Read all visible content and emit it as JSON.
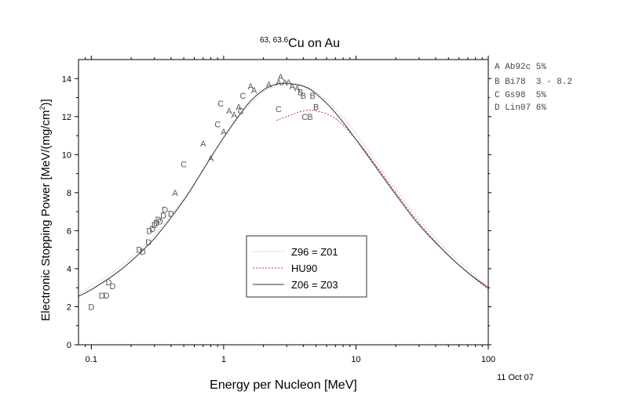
{
  "chart_data": {
    "type": "line",
    "title_main": "Cu on Au",
    "title_sup": "63, 63.6",
    "xlabel": "Energy per Nucleon [MeV]",
    "ylabel_main": "Electronic Stopping Power [MeV/(mg/cm",
    "ylabel_sup": "2",
    "ylabel_end": ")]",
    "x_scale": "log",
    "xlim": [
      0.08,
      100
    ],
    "ylim": [
      0,
      15
    ],
    "x_ticks": [
      0.1,
      1,
      10,
      100
    ],
    "x_tick_labels": [
      "0.1",
      "1",
      "10",
      "100"
    ],
    "y_ticks": [
      0,
      2,
      4,
      6,
      8,
      10,
      12,
      14
    ],
    "y_tick_labels": [
      "0",
      "2",
      "4",
      "6",
      "8",
      "10",
      "12",
      "14"
    ],
    "date_label": "11 Oct 07",
    "reference_list": [
      "A Ab92c 5%",
      "B Bi78  3 - 8.2",
      "C Gs98  5%",
      "D Lin07 6%"
    ],
    "legend": [
      {
        "name": "Z96 = Z01",
        "color": "#d99a9a",
        "dash": "1,2"
      },
      {
        "name": "HU90",
        "color": "#cc3333",
        "dash": "2,2"
      },
      {
        "name": "Z06 = Z03",
        "color": "#333333",
        "dash": ""
      }
    ],
    "series": [
      {
        "name": "Z96 = Z01",
        "x": [
          0.08,
          0.1,
          0.15,
          0.2,
          0.3,
          0.5,
          0.7,
          1.0,
          1.5,
          2.0,
          2.5,
          3.0,
          4.0,
          5.0,
          7.0,
          10,
          15,
          20,
          30,
          50,
          70,
          100
        ],
        "y": [
          2.65,
          3.1,
          3.9,
          4.6,
          5.8,
          7.7,
          9.2,
          10.9,
          12.5,
          13.3,
          13.6,
          13.7,
          13.6,
          13.3,
          12.4,
          11.1,
          9.4,
          8.2,
          6.6,
          4.9,
          4.0,
          3.0
        ]
      },
      {
        "name": "HU90",
        "x": [
          2.5,
          3.0,
          4.0,
          5.0,
          7.0,
          10,
          15,
          20,
          30,
          50,
          70,
          100
        ],
        "y": [
          11.8,
          12.0,
          12.3,
          12.3,
          11.9,
          10.8,
          9.2,
          8.0,
          6.4,
          4.7,
          3.8,
          2.9
        ]
      },
      {
        "name": "Z06 = Z03",
        "x": [
          0.08,
          0.1,
          0.15,
          0.2,
          0.3,
          0.5,
          0.7,
          1.0,
          1.5,
          2.0,
          2.5,
          3.0,
          4.0,
          5.0,
          7.0,
          10,
          15,
          20,
          30,
          50,
          70,
          100
        ],
        "y": [
          2.55,
          2.9,
          3.7,
          4.4,
          5.6,
          7.6,
          9.2,
          10.9,
          12.6,
          13.4,
          13.7,
          13.75,
          13.6,
          13.2,
          12.2,
          10.8,
          9.1,
          7.9,
          6.3,
          4.7,
          3.8,
          3.0
        ]
      }
    ],
    "data_points": [
      {
        "x": 0.1,
        "y": 2.0,
        "label": "D"
      },
      {
        "x": 0.12,
        "y": 2.6,
        "label": "D"
      },
      {
        "x": 0.13,
        "y": 2.6,
        "label": "D"
      },
      {
        "x": 0.135,
        "y": 3.3,
        "label": "D"
      },
      {
        "x": 0.145,
        "y": 3.1,
        "label": "D"
      },
      {
        "x": 0.23,
        "y": 5.0,
        "label": "D"
      },
      {
        "x": 0.245,
        "y": 4.9,
        "label": "D"
      },
      {
        "x": 0.27,
        "y": 5.4,
        "label": "D"
      },
      {
        "x": 0.275,
        "y": 6.0,
        "label": "D"
      },
      {
        "x": 0.29,
        "y": 6.1,
        "label": "D"
      },
      {
        "x": 0.3,
        "y": 6.3,
        "label": "D"
      },
      {
        "x": 0.31,
        "y": 6.4,
        "label": "D"
      },
      {
        "x": 0.32,
        "y": 6.6,
        "label": "D"
      },
      {
        "x": 0.33,
        "y": 6.5,
        "label": "D"
      },
      {
        "x": 0.35,
        "y": 6.8,
        "label": "D"
      },
      {
        "x": 0.36,
        "y": 7.1,
        "label": "D"
      },
      {
        "x": 0.4,
        "y": 6.9,
        "label": "D"
      },
      {
        "x": 0.43,
        "y": 8.0,
        "label": "A"
      },
      {
        "x": 0.5,
        "y": 9.5,
        "label": "C"
      },
      {
        "x": 0.7,
        "y": 10.6,
        "label": "A"
      },
      {
        "x": 0.8,
        "y": 9.8,
        "label": "A"
      },
      {
        "x": 0.9,
        "y": 11.6,
        "label": "C"
      },
      {
        "x": 0.95,
        "y": 12.7,
        "label": "C"
      },
      {
        "x": 1.0,
        "y": 11.2,
        "label": "A"
      },
      {
        "x": 1.1,
        "y": 12.3,
        "label": "A"
      },
      {
        "x": 1.2,
        "y": 12.1,
        "label": "A"
      },
      {
        "x": 1.3,
        "y": 12.5,
        "label": "A"
      },
      {
        "x": 1.35,
        "y": 12.3,
        "label": "C"
      },
      {
        "x": 1.4,
        "y": 13.1,
        "label": "C"
      },
      {
        "x": 1.6,
        "y": 13.6,
        "label": "A"
      },
      {
        "x": 1.7,
        "y": 13.4,
        "label": "A"
      },
      {
        "x": 2.2,
        "y": 13.7,
        "label": "A"
      },
      {
        "x": 2.6,
        "y": 13.8,
        "label": "A"
      },
      {
        "x": 2.7,
        "y": 14.1,
        "label": "A"
      },
      {
        "x": 2.9,
        "y": 13.8,
        "label": "A"
      },
      {
        "x": 3.1,
        "y": 13.8,
        "label": "A"
      },
      {
        "x": 3.3,
        "y": 13.6,
        "label": "A"
      },
      {
        "x": 3.6,
        "y": 13.5,
        "label": "A"
      },
      {
        "x": 3.8,
        "y": 13.3,
        "label": "B"
      },
      {
        "x": 4.0,
        "y": 13.1,
        "label": "B"
      },
      {
        "x": 4.7,
        "y": 13.1,
        "label": "B"
      },
      {
        "x": 5.0,
        "y": 12.5,
        "label": "B"
      },
      {
        "x": 4.5,
        "y": 12.0,
        "label": "B"
      },
      {
        "x": 2.6,
        "y": 12.4,
        "label": "C"
      },
      {
        "x": 4.1,
        "y": 12.0,
        "label": "C"
      }
    ]
  }
}
